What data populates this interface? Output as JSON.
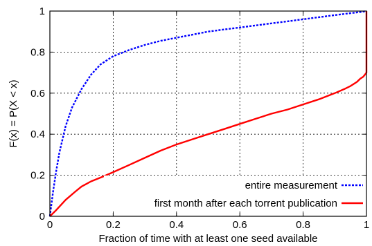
{
  "chart_data": {
    "type": "line",
    "xlabel": "Fraction of time with at least one seed available",
    "ylabel": "F(x) = P(X < x)",
    "xlim": [
      0,
      1
    ],
    "ylim": [
      0,
      1
    ],
    "xticks": [
      "0",
      "0.2",
      "0.4",
      "0.6",
      "0.8",
      "1"
    ],
    "yticks": [
      "0",
      "0.2",
      "0.4",
      "0.6",
      "0.8",
      "1"
    ],
    "grid": true,
    "legend_position": "bottom-right",
    "series": [
      {
        "name": "entire measurement",
        "color": "#0000ff",
        "style": "dashed",
        "x": [
          0,
          0.01,
          0.02,
          0.03,
          0.05,
          0.07,
          0.1,
          0.13,
          0.16,
          0.2,
          0.25,
          0.3,
          0.35,
          0.4,
          0.45,
          0.5,
          0.55,
          0.6,
          0.65,
          0.7,
          0.75,
          0.8,
          0.85,
          0.9,
          0.95,
          0.98,
          1.0
        ],
        "y": [
          0,
          0.12,
          0.22,
          0.31,
          0.44,
          0.53,
          0.62,
          0.69,
          0.74,
          0.78,
          0.81,
          0.835,
          0.855,
          0.87,
          0.885,
          0.9,
          0.91,
          0.92,
          0.93,
          0.94,
          0.95,
          0.96,
          0.97,
          0.98,
          0.99,
          0.995,
          1.0
        ]
      },
      {
        "name": "first month after each  torrent publication",
        "color": "#ff0000",
        "style": "solid",
        "x": [
          0,
          0.02,
          0.05,
          0.08,
          0.1,
          0.13,
          0.17,
          0.2,
          0.25,
          0.3,
          0.35,
          0.4,
          0.45,
          0.5,
          0.55,
          0.6,
          0.65,
          0.7,
          0.75,
          0.8,
          0.85,
          0.9,
          0.93,
          0.95,
          0.97,
          0.98,
          0.99,
          0.995,
          1.0,
          1.0,
          1.0,
          1.0
        ],
        "y": [
          0,
          0.03,
          0.08,
          0.12,
          0.145,
          0.17,
          0.195,
          0.215,
          0.25,
          0.285,
          0.32,
          0.35,
          0.375,
          0.4,
          0.425,
          0.45,
          0.475,
          0.5,
          0.52,
          0.545,
          0.57,
          0.6,
          0.62,
          0.635,
          0.655,
          0.67,
          0.68,
          0.69,
          0.7,
          0.75,
          0.9,
          1.0
        ]
      }
    ]
  }
}
